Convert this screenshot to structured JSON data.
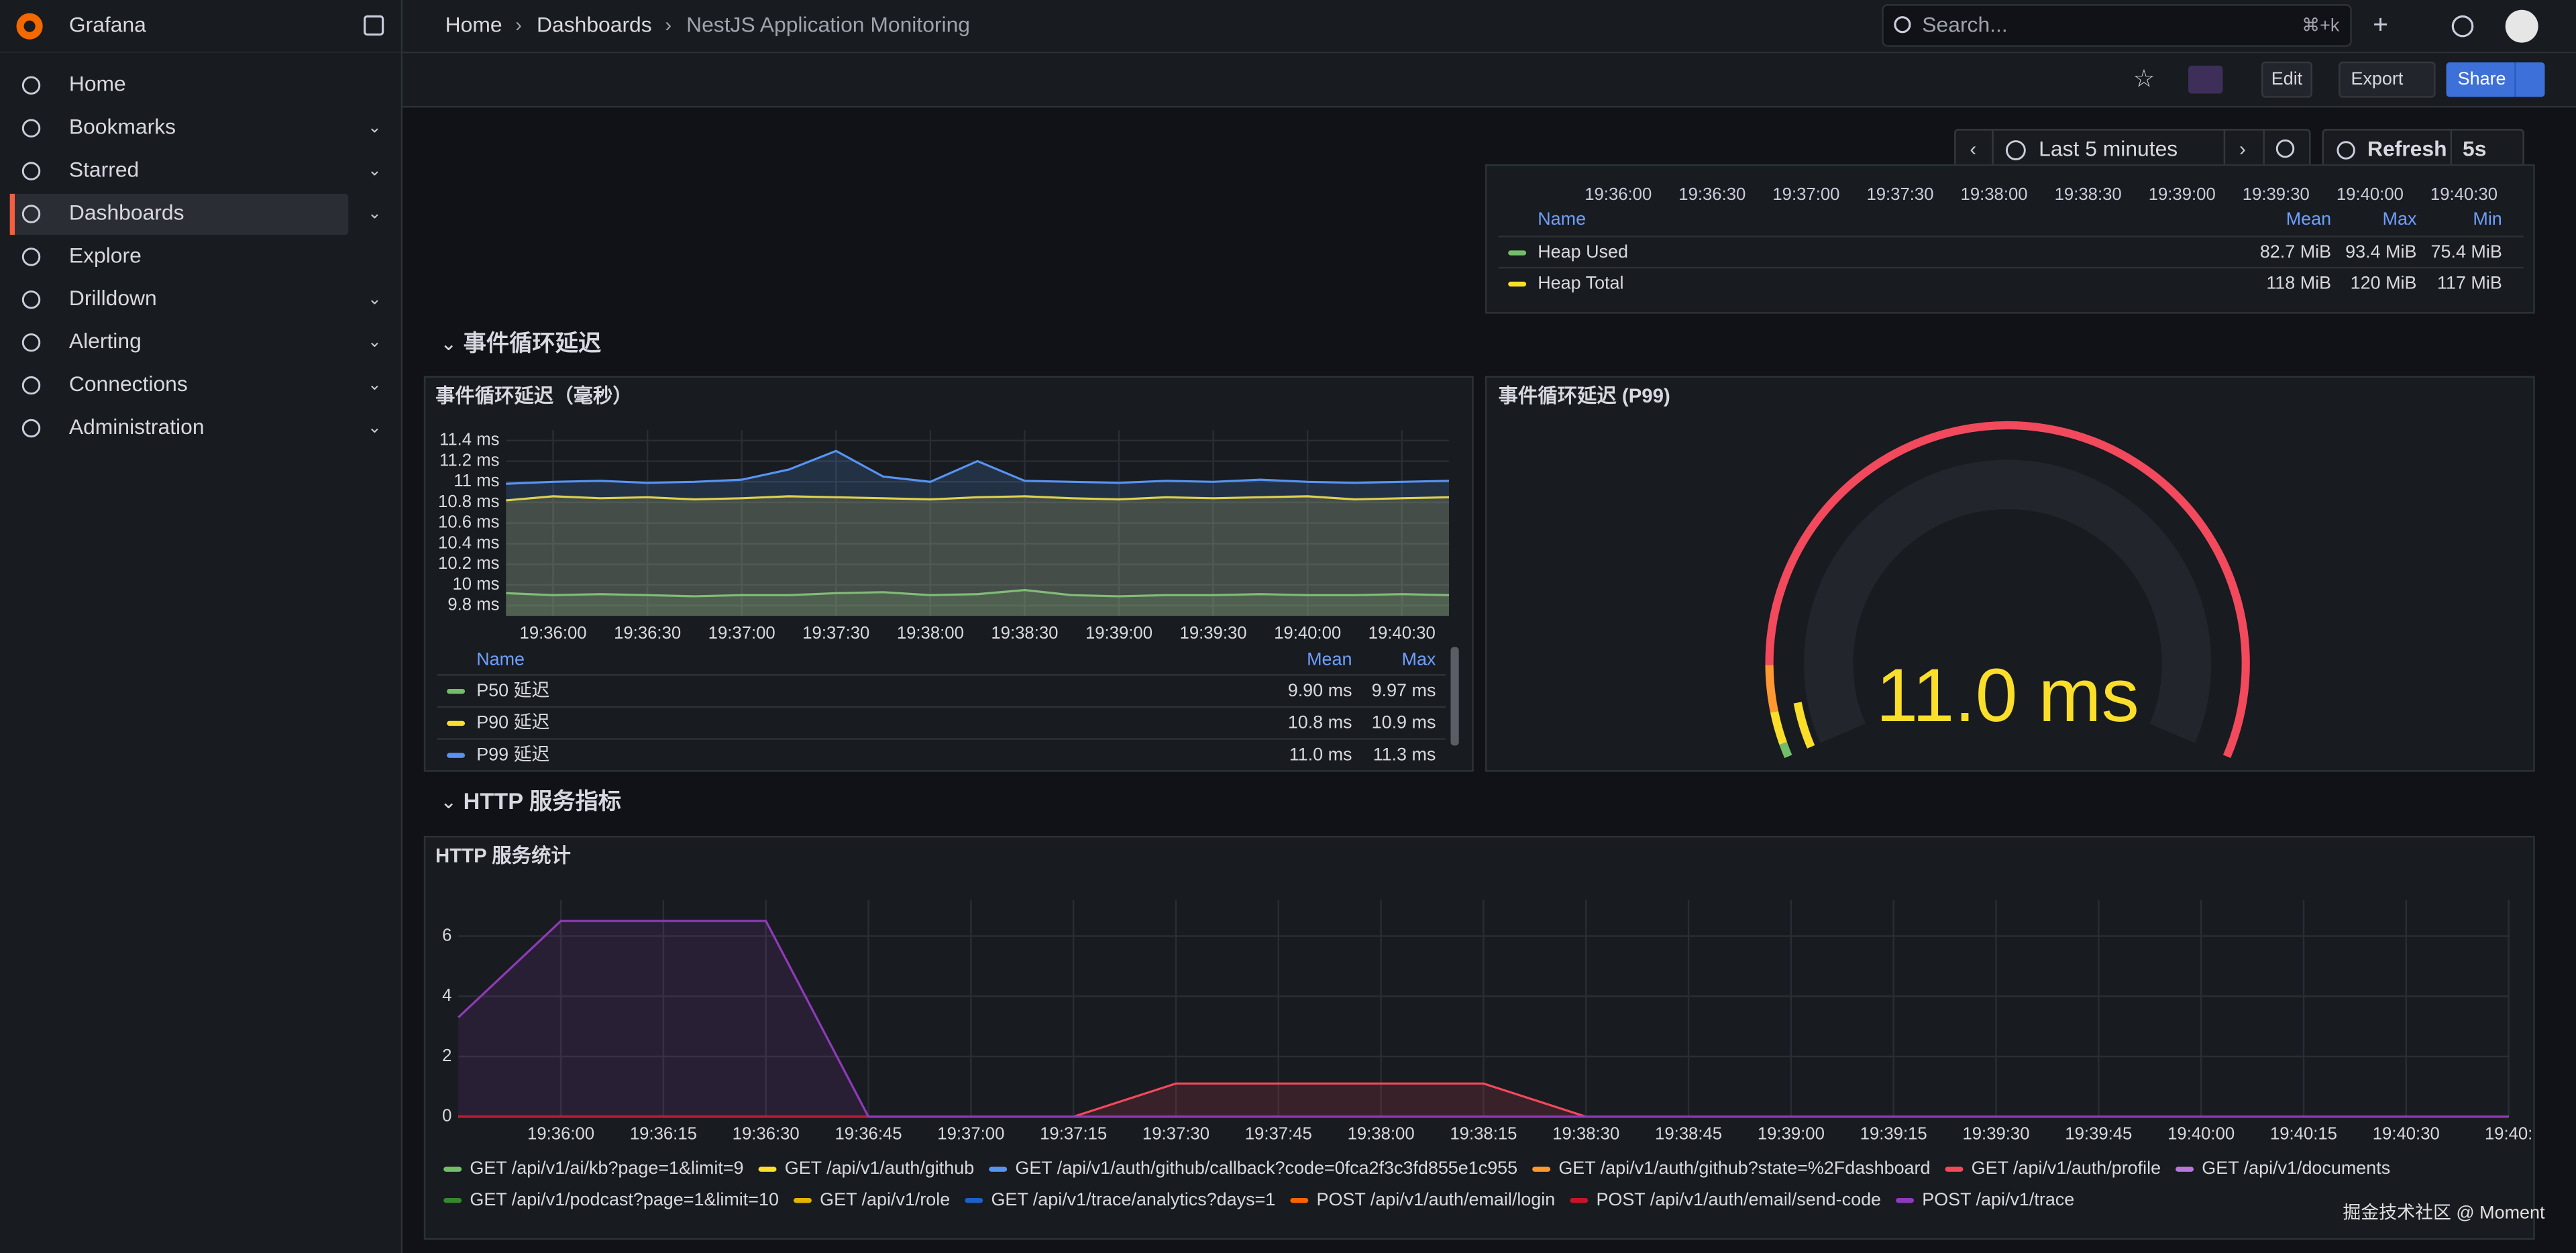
{
  "app": {
    "name": "Grafana"
  },
  "nav": [
    "Home",
    "Bookmarks",
    "Starred",
    "Dashboards",
    "Explore",
    "Drilldown",
    "Alerting",
    "Connections",
    "Administration"
  ],
  "breadcrumb": [
    "Home",
    "Dashboards",
    "NestJS Application Monitoring"
  ],
  "search": {
    "placeholder": "Search...",
    "shortcut": "⌘+k"
  },
  "toolbar": {
    "edit": "Edit",
    "export": "Export",
    "share": "Share",
    "time_range": "Last 5 minutes",
    "refresh": "Refresh",
    "interval": "5s"
  },
  "heap_panel": {
    "xticks": [
      "19:36:00",
      "19:36:30",
      "19:37:00",
      "19:37:30",
      "19:38:00",
      "19:38:30",
      "19:39:00",
      "19:39:30",
      "19:40:00",
      "19:40:30"
    ],
    "legend_headers": [
      "Name",
      "Mean",
      "Max",
      "Min"
    ],
    "rows": [
      [
        "Heap Used",
        "82.7 MiB",
        "93.4 MiB",
        "75.4 MiB"
      ],
      [
        "Heap Total",
        "118 MiB",
        "120 MiB",
        "117 MiB"
      ]
    ]
  },
  "rows": [
    "事件循环延迟",
    "HTTP 服务指标"
  ],
  "chart_data": [
    {
      "type": "line",
      "title": "事件循环延迟（毫秒）",
      "xticks": [
        "19:36:00",
        "19:36:30",
        "19:37:00",
        "19:37:30",
        "19:38:00",
        "19:38:30",
        "19:39:00",
        "19:39:30",
        "19:40:00",
        "19:40:30"
      ],
      "ylim": [
        9.7,
        11.5
      ],
      "yticks": [
        {
          "value": 9.8,
          "label": "9.8 ms"
        },
        {
          "value": 10,
          "label": "10 ms"
        },
        {
          "value": 10.2,
          "label": "10.2 ms"
        },
        {
          "value": 10.4,
          "label": "10.4 ms"
        },
        {
          "value": 10.6,
          "label": "10.6 ms"
        },
        {
          "value": 10.8,
          "label": "10.8 ms"
        },
        {
          "value": 11,
          "label": "11 ms"
        },
        {
          "value": 11.2,
          "label": "11.2 ms"
        },
        {
          "value": 11.4,
          "label": "11.4 ms"
        }
      ],
      "grid": true,
      "legend_headers": [
        "Name",
        "Mean",
        "Max"
      ],
      "series": [
        {
          "name": "P50 延迟",
          "color": "#73bf69",
          "values": [
            9.92,
            9.9,
            9.91,
            9.9,
            9.89,
            9.9,
            9.9,
            9.92,
            9.93,
            9.9,
            9.91,
            9.95,
            9.9,
            9.89,
            9.9,
            9.9,
            9.91,
            9.9,
            9.9,
            9.91,
            9.9
          ],
          "stats": [
            "9.90 ms",
            "9.97 ms"
          ]
        },
        {
          "name": "P90 延迟",
          "color": "#fade2a",
          "values": [
            10.82,
            10.86,
            10.84,
            10.85,
            10.83,
            10.84,
            10.86,
            10.85,
            10.84,
            10.83,
            10.85,
            10.86,
            10.84,
            10.83,
            10.85,
            10.84,
            10.85,
            10.86,
            10.83,
            10.84,
            10.85
          ],
          "stats": [
            "10.8 ms",
            "10.9 ms"
          ]
        },
        {
          "name": "P99 延迟",
          "color": "#5794f2",
          "values": [
            10.98,
            11.0,
            11.01,
            10.99,
            11.0,
            11.02,
            11.12,
            11.3,
            11.05,
            11.0,
            11.2,
            11.01,
            11.0,
            10.99,
            11.01,
            11.0,
            11.02,
            11.0,
            10.99,
            11.0,
            11.01
          ],
          "stats": [
            "11.0 ms",
            "11.3 ms"
          ]
        }
      ]
    },
    {
      "type": "gauge",
      "title": "事件循环延迟 (P99)",
      "values": [
        11.0
      ],
      "value_labels": [
        "11.0 ms"
      ],
      "ylim": [
        0,
        200
      ],
      "color": "#fade2a"
    },
    {
      "type": "line",
      "title": "HTTP 服务统计",
      "xticks": [
        "19:36:00",
        "19:36:15",
        "19:36:30",
        "19:36:45",
        "19:37:00",
        "19:37:15",
        "19:37:30",
        "19:37:45",
        "19:38:00",
        "19:38:15",
        "19:38:30",
        "19:38:45",
        "19:39:00",
        "19:39:15",
        "19:39:30",
        "19:39:45",
        "19:40:00",
        "19:40:15",
        "19:40:30",
        "19:40:"
      ],
      "ylim": [
        0,
        7.2
      ],
      "yticks": [
        0,
        2,
        4,
        6
      ],
      "grid": true,
      "series": [
        {
          "name": "GET /api/v1/ai/kb?page=1&limit=9",
          "color": "#73bf69",
          "values": [
            0,
            0,
            0,
            0,
            0,
            0,
            0,
            0,
            0,
            0,
            0,
            0,
            0,
            0,
            0,
            0,
            0,
            0,
            0,
            0,
            0
          ]
        },
        {
          "name": "GET /api/v1/auth/github",
          "color": "#fade2a",
          "values": [
            0,
            0,
            0,
            0,
            0,
            0,
            0,
            0,
            0,
            0,
            0,
            0,
            0,
            0,
            0,
            0,
            0,
            0,
            0,
            0,
            0
          ]
        },
        {
          "name": "GET /api/v1/auth/github/callback?code=0fca2f3c3fd855e1c955",
          "color": "#5794f2",
          "values": [
            0,
            0,
            0,
            0,
            0,
            0,
            0,
            0,
            0,
            0,
            0,
            0,
            0,
            0,
            0,
            0,
            0,
            0,
            0,
            0,
            0
          ]
        },
        {
          "name": "GET /api/v1/auth/github?state=%2Fdashboard",
          "color": "#ff9830",
          "values": [
            0,
            0,
            0,
            0,
            0,
            0,
            0,
            0,
            0,
            0,
            0,
            0,
            0,
            0,
            0,
            0,
            0,
            0,
            0,
            0,
            0
          ]
        },
        {
          "name": "GET /api/v1/auth/profile",
          "color": "#f2495c",
          "values": [
            0,
            0,
            0,
            0,
            0,
            0,
            0,
            1.1,
            1.1,
            1.1,
            1.1,
            0,
            0,
            0,
            0,
            0,
            0,
            0,
            0,
            0,
            0
          ]
        },
        {
          "name": "GET /api/v1/documents",
          "color": "#b877d9",
          "values": [
            0,
            0,
            0,
            0,
            0,
            0,
            0,
            0,
            0,
            0,
            0,
            0,
            0,
            0,
            0,
            0,
            0,
            0,
            0,
            0,
            0
          ]
        },
        {
          "name": "GET /api/v1/podcast?page=1&limit=10",
          "color": "#37872d",
          "values": [
            0,
            0,
            0,
            0,
            0,
            0,
            0,
            0,
            0,
            0,
            0,
            0,
            0,
            0,
            0,
            0,
            0,
            0,
            0,
            0,
            0
          ]
        },
        {
          "name": "GET /api/v1/role",
          "color": "#e0b400",
          "values": [
            0,
            0,
            0,
            0,
            0,
            0,
            0,
            0,
            0,
            0,
            0,
            0,
            0,
            0,
            0,
            0,
            0,
            0,
            0,
            0,
            0
          ]
        },
        {
          "name": "GET /api/v1/trace/analytics?days=1",
          "color": "#1f60c4",
          "values": [
            0,
            0,
            0,
            0,
            0,
            0,
            0,
            0,
            0,
            0,
            0,
            0,
            0,
            0,
            0,
            0,
            0,
            0,
            0,
            0,
            0
          ]
        },
        {
          "name": "POST /api/v1/auth/email/login",
          "color": "#fa6400",
          "values": [
            0,
            0,
            0,
            0,
            0,
            0,
            0,
            0,
            0,
            0,
            0,
            0,
            0,
            0,
            0,
            0,
            0,
            0,
            0,
            0,
            0
          ]
        },
        {
          "name": "POST /api/v1/auth/email/send-code",
          "color": "#c4162a",
          "values": [
            0,
            0,
            0,
            0,
            0,
            0,
            0,
            0,
            0,
            0,
            0,
            0,
            0,
            0,
            0,
            0,
            0,
            0,
            0,
            0,
            0
          ]
        },
        {
          "name": "POST /api/v1/trace",
          "color": "#8f3bb8",
          "values": [
            3.3,
            6.5,
            6.5,
            6.5,
            0,
            0,
            0,
            0,
            0,
            0,
            0,
            0,
            0,
            0,
            0,
            0,
            0,
            0,
            0,
            0,
            0
          ]
        }
      ]
    }
  ],
  "watermark": "掘金技术社区 @ Moment"
}
